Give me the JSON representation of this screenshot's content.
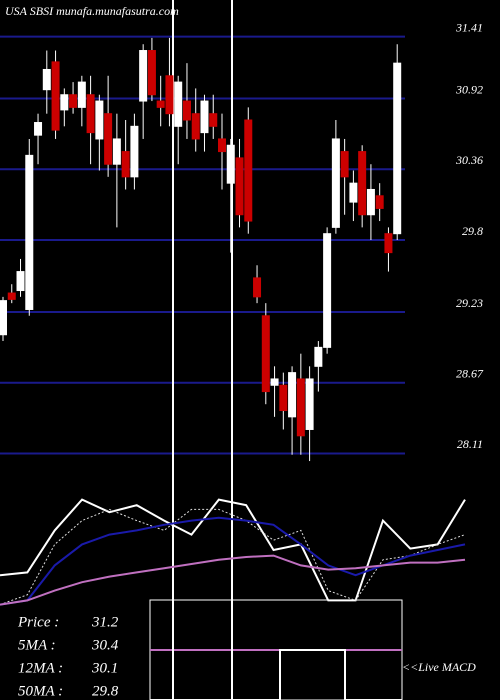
{
  "chart_data": [
    {
      "type": "candlestick",
      "title": "USA SBSI munafa.munafasutra.com",
      "open": [
        29.05,
        29.38,
        29.4,
        29.25,
        30.63,
        30.99,
        31.21,
        30.83,
        30.95,
        30.85,
        30.95,
        30.6,
        30.8,
        30.4,
        30.5,
        30.3,
        30.9,
        31.3,
        30.9,
        31.1,
        30.7,
        30.9,
        30.8,
        30.65,
        30.8,
        30.6,
        30.25,
        30.45,
        30.75,
        29.5,
        29.2,
        28.65,
        28.65,
        28.4,
        28.7,
        28.3,
        28.8,
        28.95,
        29.9,
        30.5,
        30.1,
        30.5,
        30.0,
        30.15,
        29.85,
        29.85
      ],
      "high": [
        29.35,
        29.45,
        29.65,
        30.6,
        30.8,
        31.3,
        31.3,
        31.0,
        31.05,
        31.1,
        31.1,
        30.95,
        31.1,
        30.8,
        30.75,
        30.8,
        31.35,
        31.4,
        31.1,
        31.4,
        31.1,
        31.2,
        31.0,
        30.95,
        30.95,
        30.8,
        30.6,
        30.6,
        30.85,
        29.6,
        29.3,
        28.8,
        28.75,
        28.8,
        28.9,
        28.8,
        29.0,
        29.9,
        30.75,
        30.6,
        30.35,
        30.55,
        30.4,
        30.25,
        29.9,
        31.35
      ],
      "low": [
        29.0,
        29.3,
        29.35,
        29.2,
        30.4,
        30.8,
        30.6,
        30.7,
        30.8,
        30.7,
        30.4,
        30.35,
        30.3,
        29.9,
        30.2,
        30.2,
        30.6,
        30.9,
        30.7,
        30.7,
        30.4,
        30.6,
        30.5,
        30.5,
        30.6,
        30.2,
        29.7,
        29.9,
        29.85,
        29.3,
        28.5,
        28.4,
        28.3,
        28.1,
        28.1,
        28.05,
        28.6,
        28.9,
        29.85,
        30.0,
        29.95,
        29.9,
        29.8,
        29.95,
        29.55,
        29.8
      ],
      "close": [
        29.32,
        29.33,
        29.55,
        30.47,
        30.73,
        31.15,
        30.67,
        30.95,
        30.85,
        31.05,
        30.65,
        30.9,
        30.4,
        30.6,
        30.3,
        30.7,
        31.3,
        30.95,
        30.85,
        30.8,
        31.05,
        30.75,
        30.6,
        30.9,
        30.7,
        30.5,
        30.55,
        30.0,
        29.95,
        29.35,
        28.6,
        28.7,
        28.45,
        28.75,
        28.25,
        28.7,
        28.95,
        29.85,
        30.6,
        30.3,
        30.25,
        30.0,
        30.2,
        30.05,
        29.7,
        31.2
      ],
      "up_color": "#ffffff",
      "down_color": "#cc0000",
      "ylim": [
        27.9,
        31.7
      ],
      "yticks": [
        31.41,
        30.92,
        30.36,
        29.8,
        29.23,
        28.67,
        28.11
      ],
      "grid": true,
      "stats": [
        {
          "label": "Price :",
          "value": 31.2
        },
        {
          "label": "5MA :",
          "value": 30.4
        },
        {
          "label": "12MA :",
          "value": 30.1
        },
        {
          "label": "50MA :",
          "value": 29.8
        }
      ]
    },
    {
      "type": "line",
      "annotation": "<<Live MACD",
      "ylim": [
        0,
        100
      ],
      "series": [
        {
          "color": "#ffffff",
          "values": [
            32,
            34,
            64,
            86,
            77,
            82,
            71,
            61,
            86,
            82,
            50,
            54,
            14,
            14,
            71,
            51,
            54,
            86
          ]
        },
        {
          "color": "#dddddd",
          "dashed": true,
          "values": [
            11,
            18,
            54,
            71,
            79,
            71,
            64,
            79,
            79,
            71,
            57,
            64,
            21,
            14,
            43,
            46,
            54,
            61
          ]
        },
        {
          "color": "#1a1aaa",
          "values": [
            11,
            14,
            39,
            54,
            61,
            64,
            68,
            71,
            73,
            71,
            68,
            54,
            39,
            32,
            39,
            46,
            50,
            54
          ]
        },
        {
          "color": "#c070c0",
          "values": [
            11,
            14,
            21,
            27,
            31,
            34,
            37,
            40,
            43,
            45,
            46,
            39,
            36,
            37,
            39,
            41,
            41,
            43
          ]
        }
      ]
    }
  ]
}
